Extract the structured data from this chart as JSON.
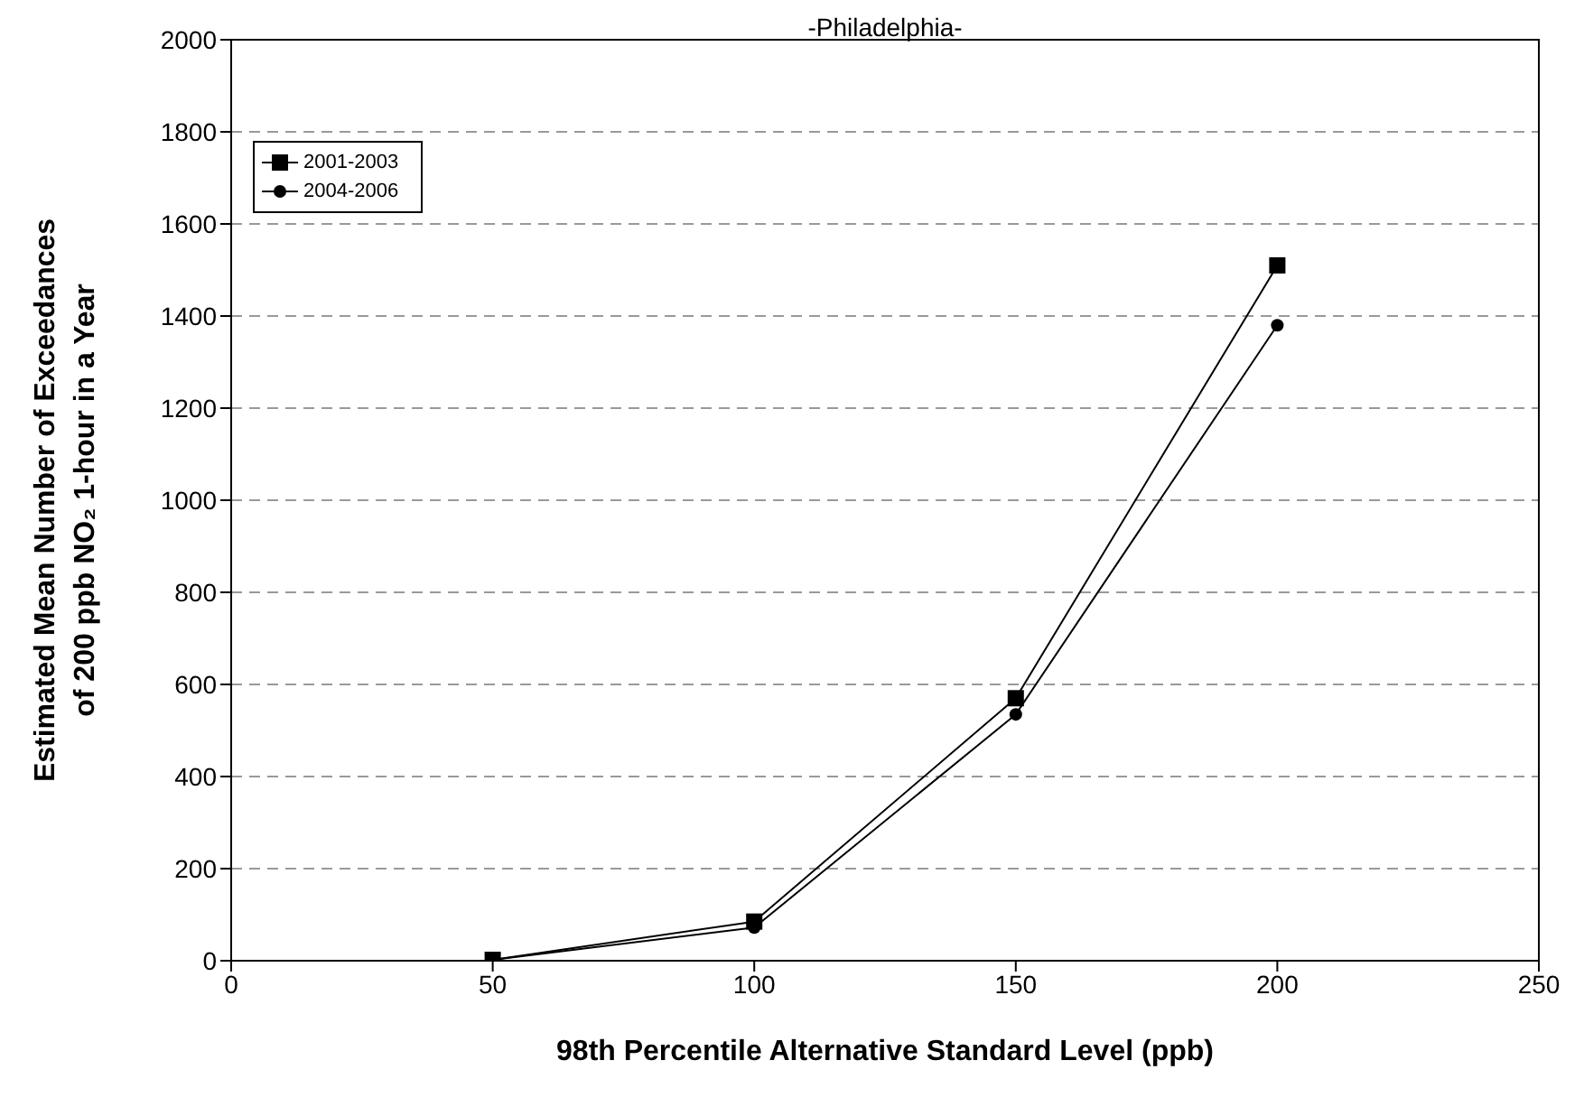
{
  "chart_data": {
    "type": "line",
    "title": "-Philadelphia-",
    "xlabel": "98th Percentile Alternative Standard Level (ppb)",
    "ylabel": "Estimated Mean Number of Exceedances\nof 200 ppb NO₂ 1-hour in a Year",
    "x": [
      50,
      100,
      150,
      200
    ],
    "series": [
      {
        "name": "2001-2003",
        "color": "#000000",
        "marker": "square",
        "values": [
          2,
          85,
          570,
          1510
        ]
      },
      {
        "name": "2004-2006",
        "color": "#000000",
        "marker": "circle",
        "values": [
          2,
          72,
          535,
          1380
        ]
      }
    ],
    "xlim": [
      0,
      250
    ],
    "xticks": [
      0,
      50,
      100,
      150,
      200,
      250
    ],
    "ylim": [
      0,
      2000
    ],
    "yticks": [
      0,
      200,
      400,
      600,
      800,
      1000,
      1200,
      1400,
      1600,
      1800,
      2000
    ],
    "grid": "y",
    "legend": "top left",
    "line_style": "solid"
  }
}
